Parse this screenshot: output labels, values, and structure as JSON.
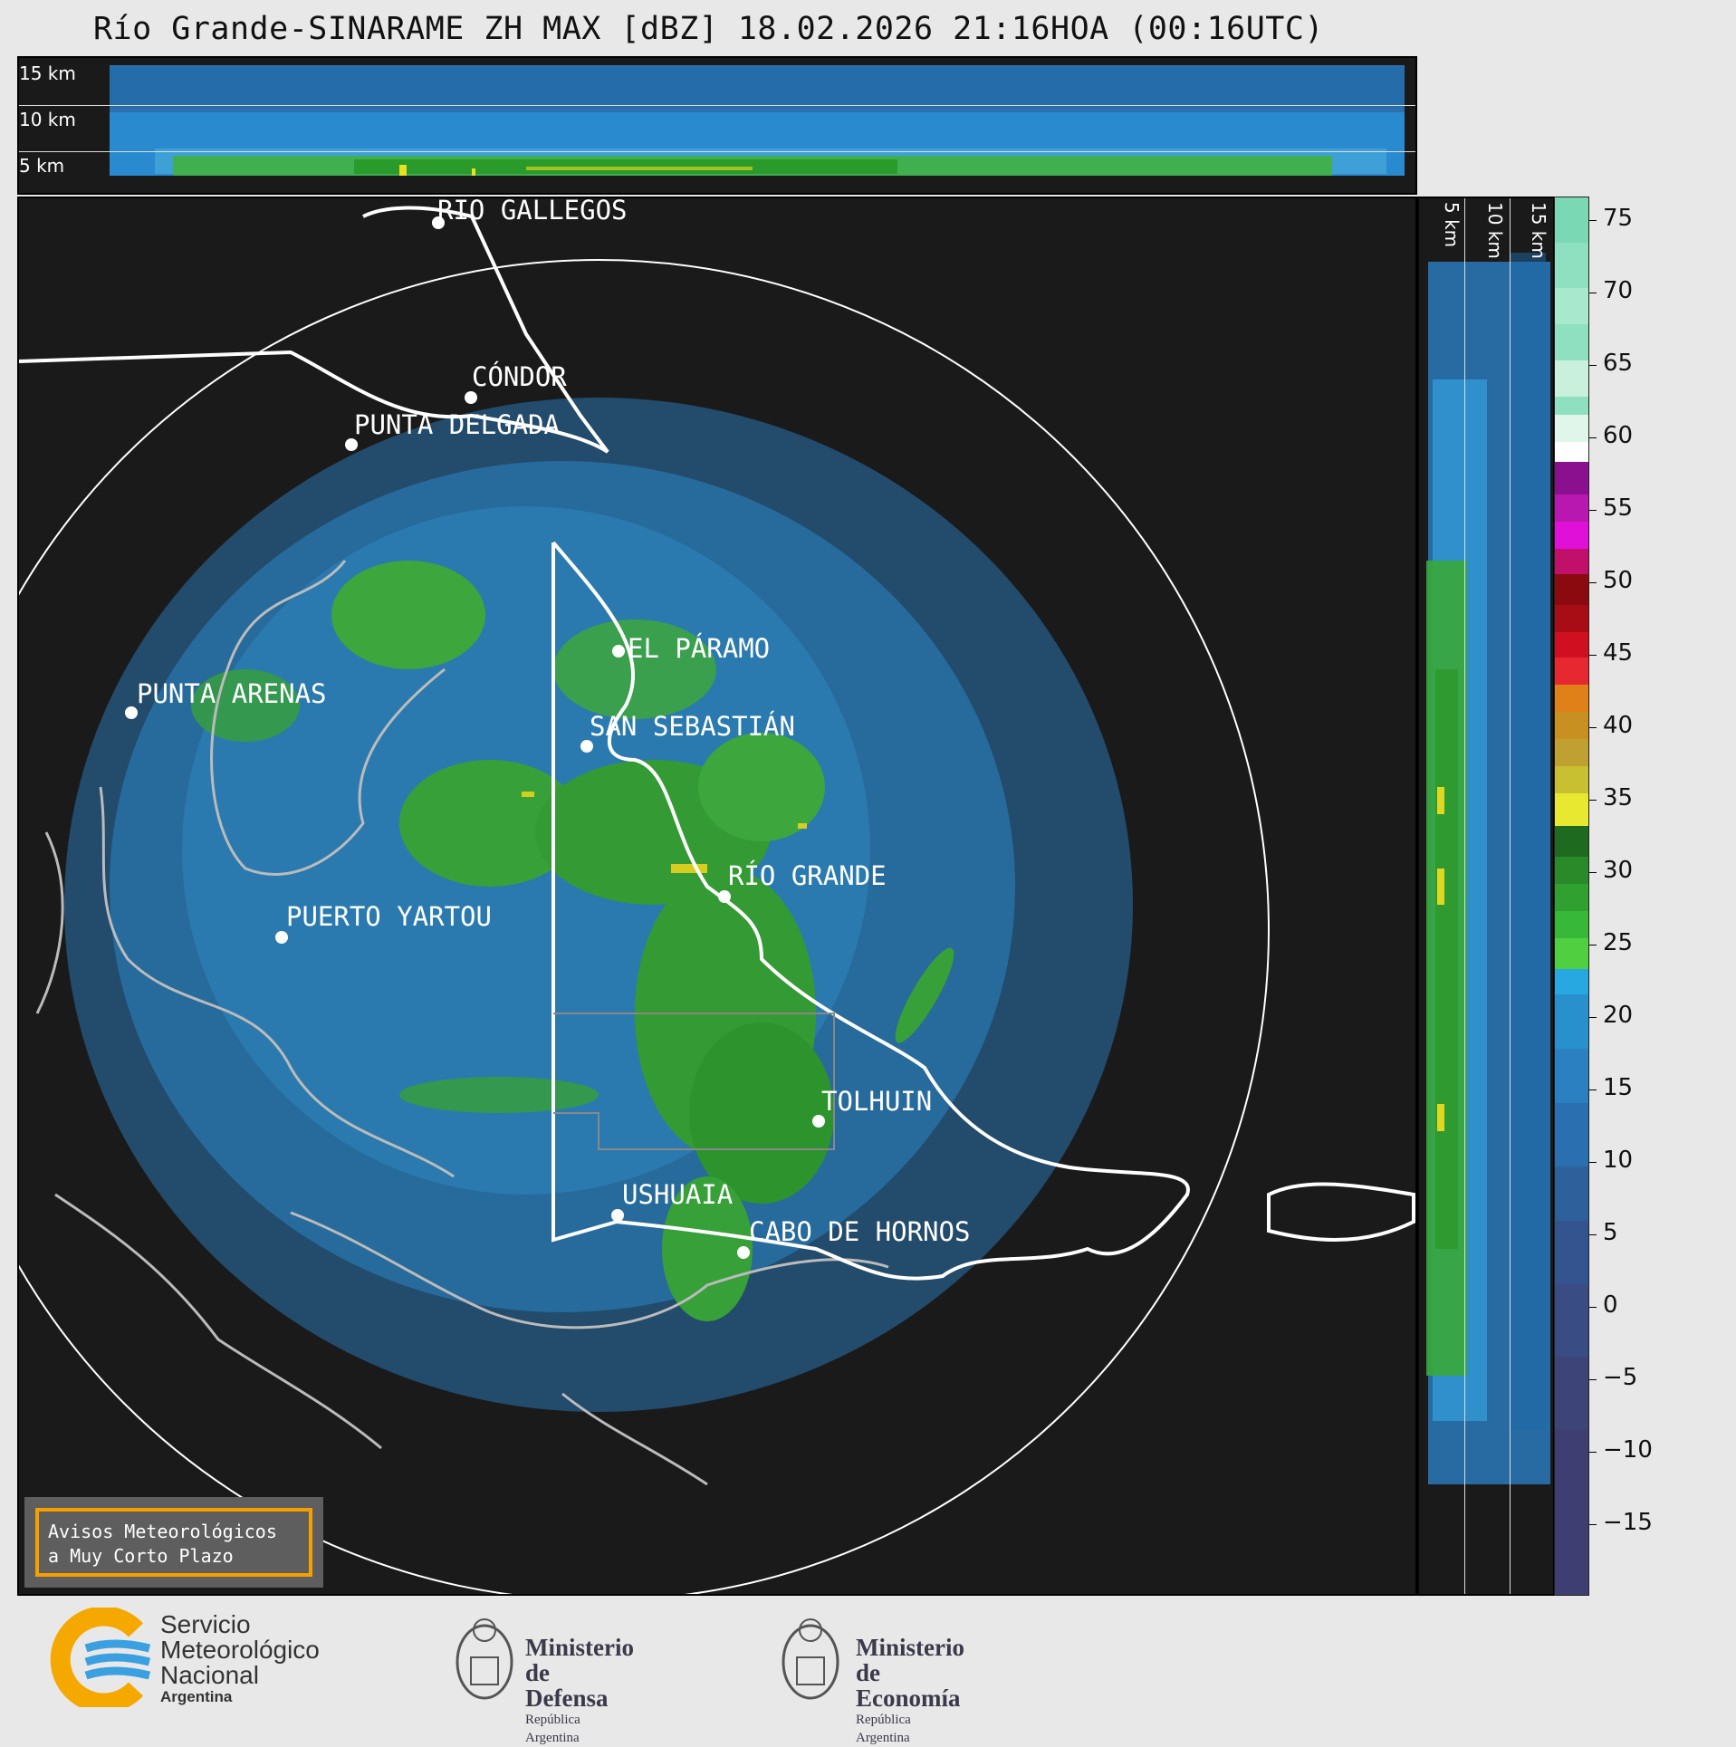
{
  "title": "Río Grande-SINARAME ZH MAX [dBZ] 18.02.2026 21:16HOA (00:16UTC)",
  "top_panel": {
    "height_labels": [
      "15 km",
      "10 km",
      "5 km"
    ]
  },
  "side_panel": {
    "height_labels": [
      "5 km",
      "10 km",
      "15 km"
    ]
  },
  "cities": [
    {
      "name": "RÍO GALLEGOS"
    },
    {
      "name": "CÓNDOR"
    },
    {
      "name": "PUNTA DELGADA"
    },
    {
      "name": "EL PÁRAMO"
    },
    {
      "name": "PUNTA ARENAS"
    },
    {
      "name": "SAN SEBASTIÁN"
    },
    {
      "name": "RÍO GRANDE"
    },
    {
      "name": "PUERTO YARTOU"
    },
    {
      "name": "TOLHUIN"
    },
    {
      "name": "USHUAIA"
    },
    {
      "name": "CABO DE HORNOS"
    }
  ],
  "colorbar": {
    "unit": "dBZ",
    "ticks": [
      "75",
      "70",
      "65",
      "60",
      "55",
      "50",
      "45",
      "40",
      "35",
      "30",
      "25",
      "20",
      "15",
      "10",
      "5",
      "0",
      "−5",
      "−10",
      "−15"
    ],
    "range": [
      -20,
      77
    ],
    "bands": [
      {
        "from": 60,
        "to": 77,
        "color": "#8fe0c0"
      },
      {
        "from": 58,
        "to": 60,
        "color": "#ffffff"
      },
      {
        "from": 50,
        "to": 58,
        "color": "#c020b0"
      },
      {
        "from": 42,
        "to": 50,
        "color": "#c81020"
      },
      {
        "from": 30,
        "to": 42,
        "color": "#d8b020"
      },
      {
        "from": 18,
        "to": 30,
        "color": "#30a830"
      },
      {
        "from": 0,
        "to": 18,
        "color": "#2a88c8"
      },
      {
        "from": -20,
        "to": 0,
        "color": "#3a4a80"
      }
    ]
  },
  "warning_box": {
    "line1": "Avisos Meteorológicos",
    "line2": "a Muy Corto Plazo"
  },
  "logos": {
    "smn": {
      "line1": "Servicio",
      "line2": "Meteorológico",
      "line3": "Nacional",
      "line4": "Argentina"
    },
    "defensa": {
      "line1": "Ministerio",
      "line2": "de Defensa",
      "line3": "República Argentina"
    },
    "economia": {
      "line1": "Ministerio",
      "line2": "de Economía",
      "line3": "República Argentina"
    }
  },
  "colors": {
    "background": "#e8e8e8",
    "panel": "#1a1a1a",
    "coast": "#ffffff",
    "warning_border": "#f5a000",
    "smn_orange": "#f5a800",
    "smn_blue": "#3aa0e0"
  }
}
